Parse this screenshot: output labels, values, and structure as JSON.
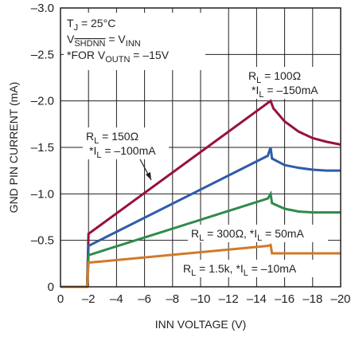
{
  "chart_data": {
    "type": "line",
    "xlabel": "INN VOLTAGE (V)",
    "ylabel": "GND PIN CURRENT (mA)",
    "xlim": [
      0,
      -20
    ],
    "ylim": [
      0,
      -3.0
    ],
    "xticks": [
      0,
      -2,
      -4,
      -6,
      -8,
      -10,
      -12,
      -14,
      -16,
      -18,
      -20
    ],
    "yticks": [
      0,
      -0.5,
      -1.0,
      -1.5,
      -2.0,
      -2.5,
      -3.0
    ],
    "xtick_labels": [
      "0",
      "–2",
      "–4",
      "–6",
      "–8",
      "–10",
      "–12",
      "–14",
      "–16",
      "–18",
      "–20"
    ],
    "ytick_labels": [
      "0",
      "–0.5",
      "–1.0",
      "–1.5",
      "–2.0",
      "–2.5",
      "–3.0"
    ],
    "grid": true,
    "series": [
      {
        "color": "#97123a",
        "points": [
          [
            0,
            0
          ],
          [
            -1.9,
            0
          ],
          [
            -1.9,
            -0.01
          ],
          [
            -2,
            -0.57
          ],
          [
            -15,
            -2.0
          ],
          [
            -15.2,
            -1.92
          ],
          [
            -16,
            -1.78
          ],
          [
            -17,
            -1.67
          ],
          [
            -18,
            -1.6
          ],
          [
            -19,
            -1.56
          ],
          [
            -20,
            -1.53
          ]
        ]
      },
      {
        "color": "#2e5ca8",
        "points": [
          [
            0,
            0
          ],
          [
            -1.9,
            0
          ],
          [
            -1.9,
            -0.01
          ],
          [
            -2,
            -0.44
          ],
          [
            -14.8,
            -1.41
          ],
          [
            -15,
            -1.5
          ],
          [
            -15.1,
            -1.38
          ],
          [
            -16,
            -1.31
          ],
          [
            -17,
            -1.28
          ],
          [
            -18,
            -1.26
          ],
          [
            -19,
            -1.25
          ],
          [
            -20,
            -1.25
          ]
        ]
      },
      {
        "color": "#2e8b4a",
        "points": [
          [
            0,
            0
          ],
          [
            -1.9,
            0
          ],
          [
            -1.9,
            -0.01
          ],
          [
            -2,
            -0.34
          ],
          [
            -14.8,
            -0.95
          ],
          [
            -15,
            -1.0
          ],
          [
            -15.1,
            -0.9
          ],
          [
            -16,
            -0.84
          ],
          [
            -17,
            -0.81
          ],
          [
            -18,
            -0.8
          ],
          [
            -19,
            -0.8
          ],
          [
            -20,
            -0.8
          ]
        ]
      },
      {
        "color": "#d07a2a",
        "points": [
          [
            0,
            0
          ],
          [
            -1.9,
            0
          ],
          [
            -1.9,
            -0.01
          ],
          [
            -2,
            -0.26
          ],
          [
            -14.8,
            -0.44
          ],
          [
            -15,
            -0.45
          ],
          [
            -15.1,
            -0.36
          ],
          [
            -20,
            -0.36
          ]
        ]
      }
    ],
    "annotations": {
      "conditions": [
        {
          "parts": [
            {
              "t": "T",
              "s": ""
            },
            {
              "t": "J",
              "s": "sub"
            },
            {
              "t": " = 25°C",
              "s": ""
            }
          ]
        },
        {
          "parts": [
            {
              "t": "V",
              "s": ""
            },
            {
              "t": "SHDNN",
              "s": "subover"
            },
            {
              "t": " = V",
              "s": ""
            },
            {
              "t": "INN",
              "s": "sub"
            }
          ]
        },
        {
          "parts": [
            {
              "t": "*FOR V",
              "s": ""
            },
            {
              "t": "OUTN",
              "s": "sub"
            },
            {
              "t": " = –15V",
              "s": ""
            }
          ]
        }
      ],
      "series_labels": [
        {
          "color": "#97123a",
          "line1": [
            {
              "t": "R",
              "s": ""
            },
            {
              "t": "L",
              "s": "sub"
            },
            {
              "t": " = 100Ω",
              "s": ""
            }
          ],
          "line2": [
            {
              "t": "*I",
              "s": ""
            },
            {
              "t": "L",
              "s": "sub"
            },
            {
              "t": " = –150mA",
              "s": ""
            }
          ]
        },
        {
          "color": "#2e5ca8",
          "line1": [
            {
              "t": "R",
              "s": ""
            },
            {
              "t": "L",
              "s": "sub"
            },
            {
              "t": " = 150Ω",
              "s": ""
            }
          ],
          "line2": [
            {
              "t": "*I",
              "s": ""
            },
            {
              "t": "L",
              "s": "sub"
            },
            {
              "t": " = –100mA",
              "s": ""
            }
          ]
        },
        {
          "color": "#2e8b4a",
          "line1": [
            {
              "t": "R",
              "s": ""
            },
            {
              "t": "L",
              "s": "sub"
            },
            {
              "t": " = 300Ω,  *I",
              "s": ""
            },
            {
              "t": "L",
              "s": "sub"
            },
            {
              "t": " = 50mA",
              "s": ""
            }
          ]
        },
        {
          "color": "#d07a2a",
          "line1": [
            {
              "t": "R",
              "s": ""
            },
            {
              "t": "L",
              "s": "sub"
            },
            {
              "t": " = 1.5k, *I",
              "s": ""
            },
            {
              "t": "L",
              "s": "sub"
            },
            {
              "t": " = –10mA",
              "s": ""
            }
          ]
        }
      ]
    }
  }
}
